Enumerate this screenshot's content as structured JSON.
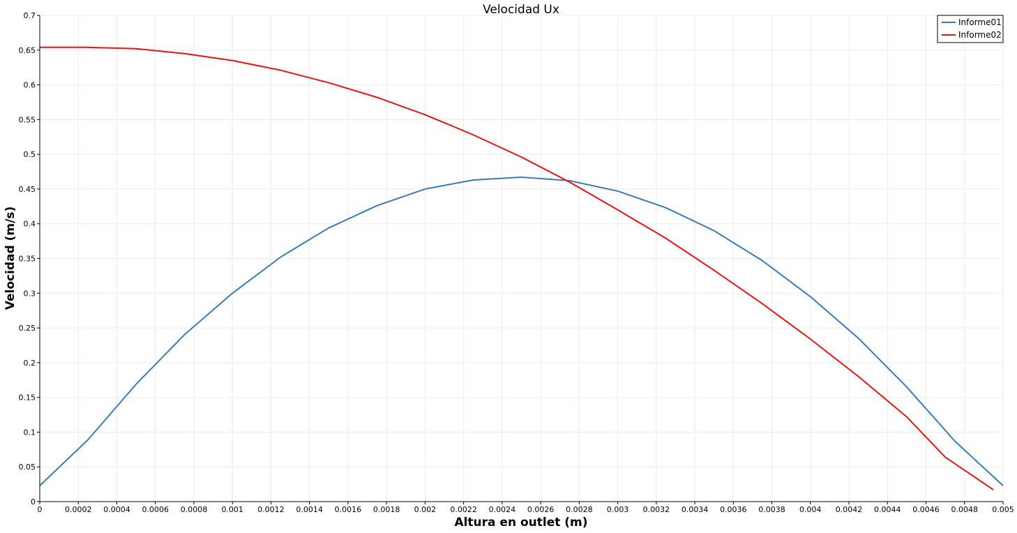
{
  "chart_data": {
    "type": "line",
    "title": "Velocidad Ux",
    "xlabel": "Altura en outlet (m)",
    "ylabel": "Velocidad (m/s)",
    "xlim": [
      0,
      0.005
    ],
    "ylim": [
      0,
      0.7
    ],
    "x_ticks": [
      0,
      0.0002,
      0.0004,
      0.0006,
      0.0008,
      0.001,
      0.0012,
      0.0014,
      0.0016,
      0.0018,
      0.002,
      0.0022,
      0.0024,
      0.0026,
      0.0028,
      0.003,
      0.0032,
      0.0034,
      0.0036,
      0.0038,
      0.004,
      0.0042,
      0.0044,
      0.0046,
      0.0048,
      0.005
    ],
    "x_tick_labels": [
      "0",
      "0.0002",
      "0.0004",
      "0.0006",
      "0.0008",
      "0.001",
      "0.0012",
      "0.0014",
      "0.0016",
      "0.0018",
      "0.002",
      "0.0022",
      "0.0024",
      "0.0026",
      "0.0028",
      "0.003",
      "0.0032",
      "0.0034",
      "0.0036",
      "0.0038",
      "0.004",
      "0.0042",
      "0.0044",
      "0.0046",
      "0.0048",
      "0.005"
    ],
    "y_ticks": [
      0,
      0.05,
      0.1,
      0.15,
      0.2,
      0.25,
      0.3,
      0.35,
      0.4,
      0.45,
      0.5,
      0.55,
      0.6,
      0.65,
      0.7
    ],
    "y_tick_labels": [
      "0",
      "0.05",
      "0.1",
      "0.15",
      "0.2",
      "0.25",
      "0.3",
      "0.35",
      "0.4",
      "0.45",
      "0.5",
      "0.55",
      "0.6",
      "0.65",
      "0.7"
    ],
    "grid": true,
    "legend_position": "top-right",
    "series": [
      {
        "name": "Informe01",
        "color": "#3a7ab8",
        "x": [
          0,
          0.00025,
          0.0005,
          0.00075,
          0.001,
          0.00125,
          0.0015,
          0.00175,
          0.002,
          0.00225,
          0.0025,
          0.00275,
          0.003,
          0.00325,
          0.0035,
          0.00375,
          0.004,
          0.00425,
          0.0045,
          0.00475,
          0.005
        ],
        "y": [
          0.023,
          0.089,
          0.169,
          0.24,
          0.3,
          0.352,
          0.394,
          0.426,
          0.45,
          0.463,
          0.467,
          0.462,
          0.447,
          0.423,
          0.39,
          0.347,
          0.295,
          0.235,
          0.165,
          0.087,
          0.023
        ]
      },
      {
        "name": "Informe02",
        "color": "#ee1111",
        "x": [
          0,
          0.00025,
          0.0005,
          0.00075,
          0.001,
          0.00125,
          0.0015,
          0.00175,
          0.002,
          0.00225,
          0.0025,
          0.00275,
          0.003,
          0.00325,
          0.0035,
          0.00375,
          0.004,
          0.00425,
          0.0045,
          0.0047,
          0.00495
        ],
        "y": [
          0.654,
          0.654,
          0.652,
          0.645,
          0.635,
          0.621,
          0.603,
          0.582,
          0.557,
          0.528,
          0.496,
          0.46,
          0.42,
          0.379,
          0.333,
          0.285,
          0.234,
          0.18,
          0.122,
          0.064,
          0.017
        ]
      }
    ]
  }
}
